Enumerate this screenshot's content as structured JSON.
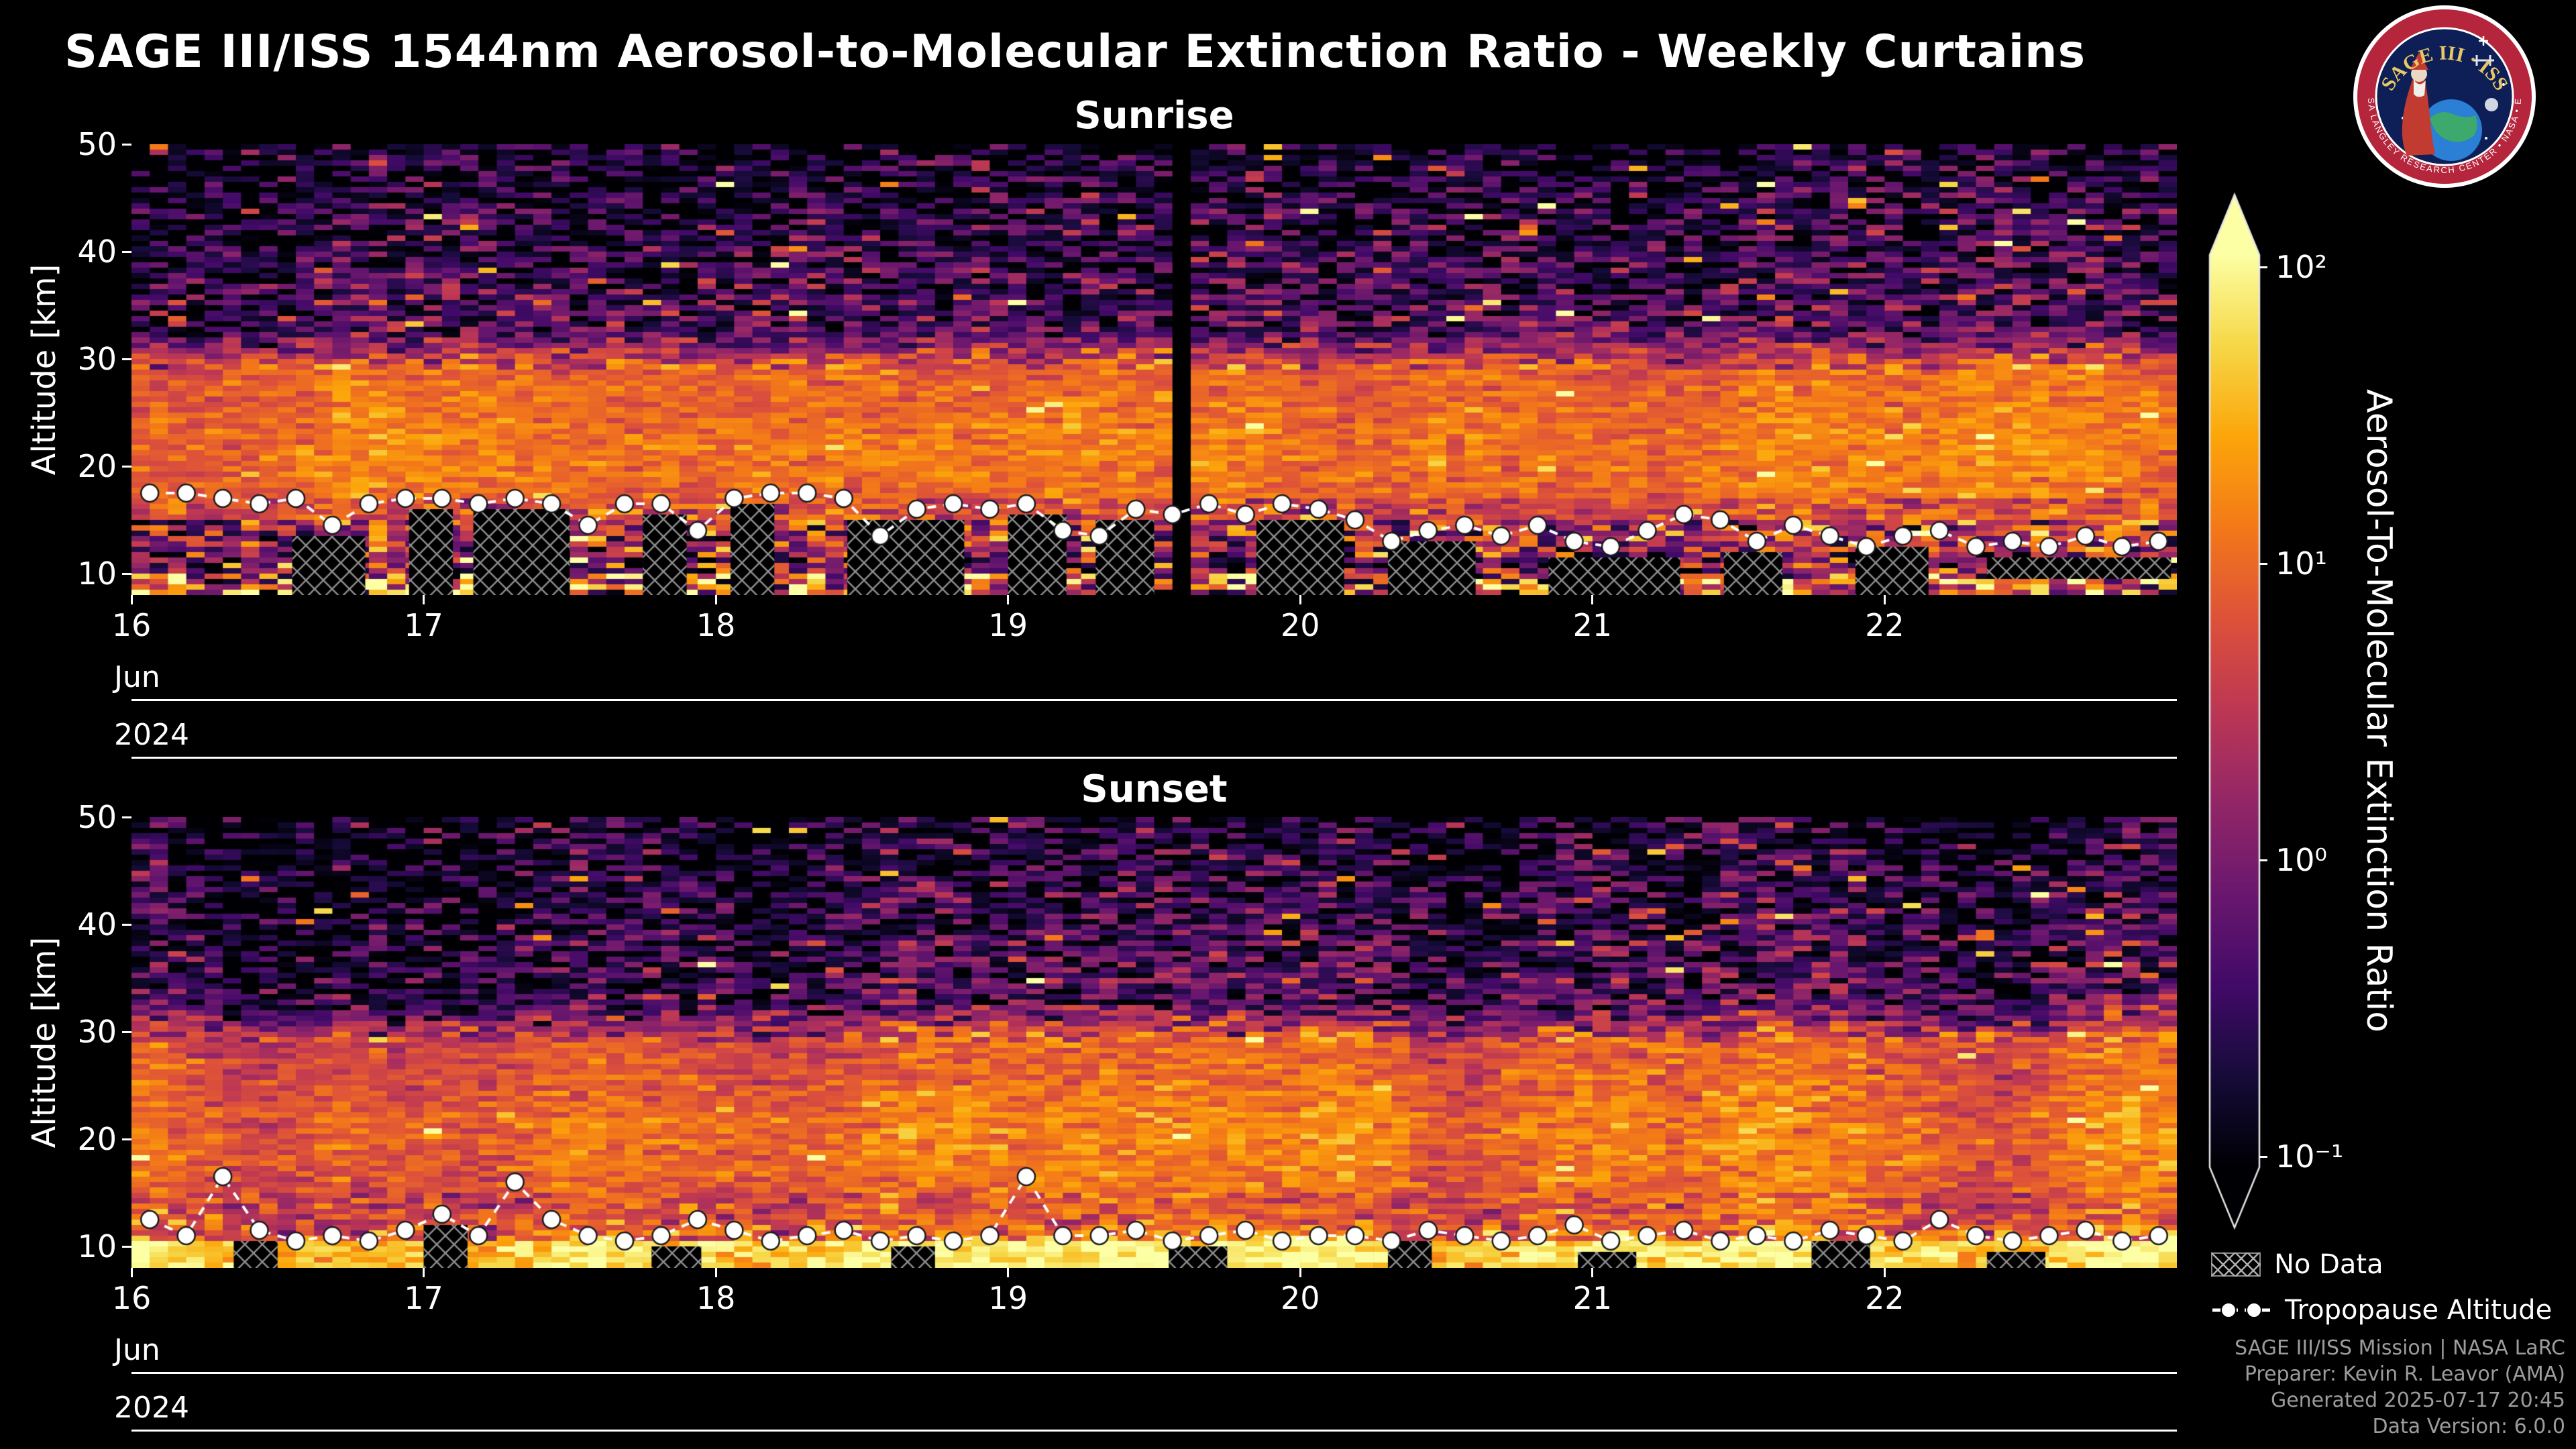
{
  "page": {
    "title": "SAGE III/ISS 1544nm Aerosol-to-Molecular Extinction Ratio - Weekly Curtains",
    "background": "#000000"
  },
  "logo": {
    "arc_text": "SAGE III · ISS",
    "ring_text": "NASA LANGLEY RESEARCH CENTER • NASA • ESA",
    "colors": {
      "ring": "#b5253c",
      "inner": "#0d1f56",
      "gold": "#e8c766"
    }
  },
  "colorbar": {
    "label": "Aerosol-To-Molecular Extinction Ratio",
    "scale": "log",
    "extend": "both",
    "colormap": "inferno",
    "tick_labels": [
      "10²",
      "10¹",
      "10⁰",
      "10⁻¹"
    ],
    "tick_values": [
      100,
      10,
      1,
      0.1
    ]
  },
  "legend": {
    "no_data_label": "No Data",
    "tropopause_label": "Tropopause Altitude"
  },
  "footer": {
    "lines": [
      "SAGE III/ISS Mission | NASA LaRC",
      "Preparer: Kevin R. Leavor (AMA)",
      "Generated 2025-07-17 20:45",
      "Data Version: 6.0.0"
    ]
  },
  "chart_data": [
    {
      "type": "heatmap",
      "title": "Sunrise",
      "ylabel": "Altitude [km]",
      "y_ticks": [
        10,
        20,
        30,
        40,
        50
      ],
      "y_range_km": [
        8,
        50
      ],
      "x_ticks": [
        16,
        17,
        18,
        19,
        20,
        21,
        22
      ],
      "x_range_days": [
        16,
        23
      ],
      "x_month": "Jun",
      "x_year": "2024",
      "value_unit": "aerosol-to-molecular extinction ratio",
      "value_scale": "log10",
      "value_range": [
        0.1,
        100
      ],
      "tropopause_km": [
        17.5,
        17.5,
        17,
        16.5,
        17,
        14.5,
        16.5,
        17,
        17,
        16.5,
        17,
        16.5,
        14.5,
        16.5,
        16.5,
        14,
        17,
        17.5,
        17.5,
        17,
        13.5,
        16,
        16.5,
        16,
        16.5,
        14,
        13.5,
        16,
        15.5,
        16.5,
        15.5,
        16.5,
        16,
        15,
        13,
        14,
        14.5,
        13.5,
        14.5,
        13,
        12.5,
        14,
        15.5,
        15,
        13,
        14.5,
        13.5,
        12.5,
        13.5,
        14,
        12.5,
        13,
        12.5,
        13.5,
        12.5,
        13
      ],
      "no_data_spans_days": [
        [
          16.55,
          16.8
        ],
        [
          16.95,
          17.1
        ],
        [
          17.17,
          17.5
        ],
        [
          17.75,
          17.9
        ],
        [
          18.05,
          18.2
        ],
        [
          18.45,
          18.85
        ],
        [
          19.0,
          19.2
        ],
        [
          19.3,
          19.5
        ],
        [
          19.85,
          20.15
        ],
        [
          20.3,
          20.6
        ],
        [
          20.85,
          21.3
        ],
        [
          21.45,
          21.65
        ],
        [
          21.9,
          22.15
        ],
        [
          22.35,
          22.7,
          9.5
        ],
        [
          22.7,
          22.98,
          9.5
        ]
      ],
      "gap_days": [
        19.58
      ],
      "model": {
        "seed": 1337,
        "cols": 112,
        "rows": 84,
        "column_mod": 0.22,
        "bands": [
          {
            "alt": [
              8,
              10
            ],
            "log10": 0.9,
            "sigma": 0.95
          },
          {
            "alt": [
              10,
              12
            ],
            "log10": 0.1,
            "sigma": 0.85
          },
          {
            "alt": [
              12,
              15
            ],
            "log10": 0.4,
            "sigma": 0.7
          },
          {
            "alt": [
              15,
              17
            ],
            "log10": 0.75,
            "sigma": 0.35
          },
          {
            "alt": [
              17,
              29
            ],
            "log10": 0.95,
            "sigma": 0.18,
            "bump": {
              "center": 22,
              "width": 4,
              "amp": 0.15
            },
            "hot": {
              "prob": 0.01,
              "amp": 0.8
            }
          },
          {
            "alt": [
              29,
              33
            ],
            "log10": 0.95,
            "log10_to": -0.45,
            "sigma": 0.4
          },
          {
            "alt": [
              33,
              50
            ],
            "log10": -0.35,
            "log10_to": -0.85,
            "sigma": 0.5,
            "hot": {
              "prob": 0.02,
              "amp": 1.7
            }
          }
        ]
      }
    },
    {
      "type": "heatmap",
      "title": "Sunset",
      "ylabel": "Altitude [km]",
      "y_ticks": [
        10,
        20,
        30,
        40,
        50
      ],
      "y_range_km": [
        8,
        50
      ],
      "x_ticks": [
        16,
        17,
        18,
        19,
        20,
        21,
        22
      ],
      "x_range_days": [
        16,
        23
      ],
      "x_month": "Jun",
      "x_year": "2024",
      "value_unit": "aerosol-to-molecular extinction ratio",
      "value_scale": "log10",
      "value_range": [
        0.1,
        100
      ],
      "tropopause_km": [
        12.5,
        11,
        16.5,
        11.5,
        10.5,
        11,
        10.5,
        11.5,
        13,
        11,
        16,
        12.5,
        11,
        10.5,
        11,
        12.5,
        11.5,
        10.5,
        11,
        11.5,
        10.5,
        11,
        10.5,
        11,
        16.5,
        11,
        11,
        11.5,
        10.5,
        11,
        11.5,
        10.5,
        11,
        11,
        10.5,
        11.5,
        11,
        10.5,
        11,
        12,
        10.5,
        11,
        11.5,
        10.5,
        11,
        10.5,
        11.5,
        11,
        10.5,
        12.5,
        11,
        10.5,
        11,
        11.5,
        10.5,
        11
      ],
      "no_data_spans_days": [
        [
          16.35,
          16.5
        ],
        [
          17.0,
          17.15
        ],
        [
          17.78,
          17.95
        ],
        [
          18.6,
          18.75
        ],
        [
          19.55,
          19.75
        ],
        [
          20.3,
          20.45
        ],
        [
          20.95,
          21.15
        ],
        [
          21.75,
          21.95
        ],
        [
          22.35,
          22.55
        ]
      ],
      "gap_days": [],
      "model": {
        "seed": 777,
        "cols": 112,
        "rows": 84,
        "column_mod": 0.3,
        "bands": [
          {
            "alt": [
              8,
              10.5
            ],
            "log10": 1.75,
            "sigma": 0.22
          },
          {
            "alt": [
              10.5,
              12
            ],
            "log10": 1.0,
            "sigma": 0.4
          },
          {
            "alt": [
              12,
              15
            ],
            "log10": 0.8,
            "sigma": 0.3
          },
          {
            "alt": [
              15,
              29
            ],
            "log10": 0.82,
            "sigma": 0.2,
            "bump": {
              "center": 20,
              "width": 5,
              "amp": 0.25
            },
            "hot": {
              "prob": 0.006,
              "amp": 0.7
            }
          },
          {
            "alt": [
              29,
              33
            ],
            "log10": 0.8,
            "log10_to": -0.5,
            "sigma": 0.45
          },
          {
            "alt": [
              33,
              50
            ],
            "log10": -0.4,
            "log10_to": -0.85,
            "sigma": 0.5,
            "hot": {
              "prob": 0.018,
              "amp": 1.6
            }
          }
        ]
      }
    }
  ]
}
